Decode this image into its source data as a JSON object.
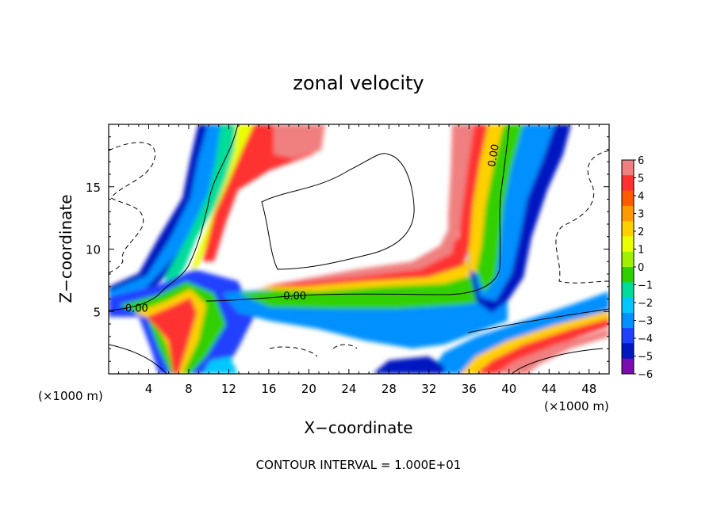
{
  "chart_data": {
    "type": "heatmap",
    "title": "zonal velocity",
    "xlabel": "X−coordinate",
    "ylabel": "Z−coordinate",
    "x_unit_left": "(×1000 m)",
    "x_unit_right": "(×1000 m)",
    "footer": "CONTOUR INTERVAL = 1.000E+01",
    "xlim": [
      0,
      50
    ],
    "ylim": [
      0,
      20
    ],
    "x_ticks": [
      4,
      8,
      12,
      16,
      20,
      24,
      28,
      32,
      36,
      40,
      44,
      48
    ],
    "y_ticks": [
      5,
      10,
      15
    ],
    "colorbar": {
      "range": [
        -6,
        6
      ],
      "labels": [
        "6",
        "5",
        "4",
        "3",
        "2",
        "1",
        "0",
        "−1",
        "−2",
        "−3",
        "−4",
        "−5",
        "−6"
      ],
      "colors": [
        "#f08080",
        "#ff3030",
        "#ff5a00",
        "#ff9a00",
        "#ffd000",
        "#eaff00",
        "#a0f000",
        "#30d000",
        "#00dc9a",
        "#00c8ff",
        "#0090ff",
        "#2040ff",
        "#0018c0",
        "#7a0cb0"
      ]
    },
    "contour_labels": [
      {
        "text": "0.00",
        "x": 2.8,
        "y": 5.2
      },
      {
        "text": "0.00",
        "x": 18.6,
        "y": 6.2
      },
      {
        "text": "0.00",
        "x": 38.5,
        "y": 17.5
      }
    ]
  }
}
